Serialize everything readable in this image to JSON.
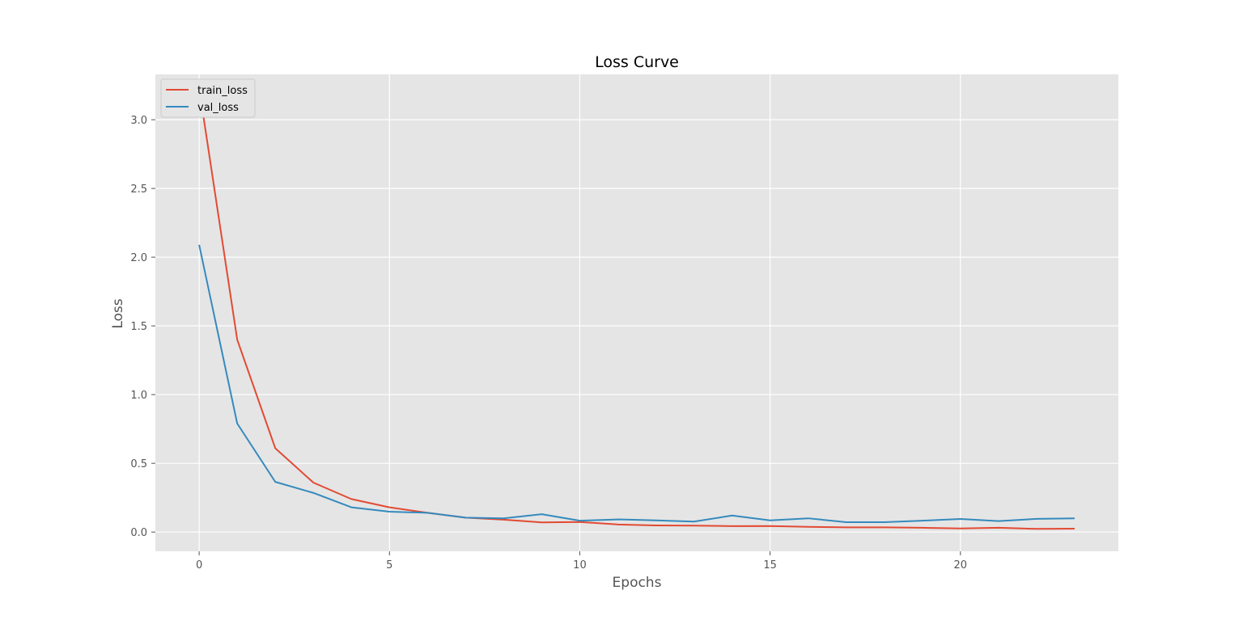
{
  "chart_data": {
    "type": "line",
    "title": "Loss Curve",
    "xlabel": "Epochs",
    "ylabel": "Loss",
    "xlim": [
      -1.15,
      24.15
    ],
    "ylim": [
      -0.14,
      3.33
    ],
    "xticks": [
      0,
      5,
      10,
      15,
      20
    ],
    "xtick_labels": [
      "0",
      "5",
      "10",
      "15",
      "20"
    ],
    "yticks": [
      0.0,
      0.5,
      1.0,
      1.5,
      2.0,
      2.5,
      3.0
    ],
    "ytick_labels": [
      "0.0",
      "0.5",
      "1.0",
      "1.5",
      "2.0",
      "2.5",
      "3.0"
    ],
    "grid": true,
    "legend_position": "top-left",
    "x": [
      0,
      1,
      2,
      3,
      4,
      5,
      6,
      7,
      8,
      9,
      10,
      11,
      12,
      13,
      14,
      15,
      16,
      17,
      18,
      19,
      20,
      21,
      22,
      23
    ],
    "series": [
      {
        "name": "train_loss",
        "color": "#E24A33",
        "values": [
          3.23,
          1.4,
          0.61,
          0.36,
          0.24,
          0.18,
          0.14,
          0.105,
          0.09,
          0.07,
          0.073,
          0.055,
          0.048,
          0.047,
          0.043,
          0.044,
          0.038,
          0.034,
          0.034,
          0.031,
          0.026,
          0.031,
          0.023,
          0.025
        ]
      },
      {
        "name": "val_loss",
        "color": "#348ABD",
        "values": [
          2.09,
          0.79,
          0.365,
          0.285,
          0.18,
          0.148,
          0.14,
          0.105,
          0.1,
          0.13,
          0.083,
          0.092,
          0.085,
          0.076,
          0.12,
          0.085,
          0.1,
          0.072,
          0.072,
          0.083,
          0.095,
          0.08,
          0.096,
          0.1
        ]
      }
    ]
  }
}
